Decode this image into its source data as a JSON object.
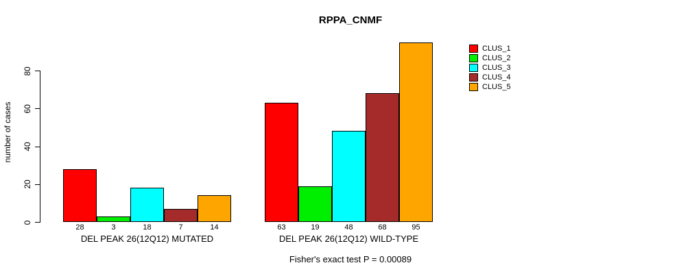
{
  "chart_data": {
    "type": "bar",
    "title": "RPPA_CNMF",
    "ylabel": "number of cases",
    "xlabel": "",
    "yticks": [
      0,
      20,
      40,
      60,
      80
    ],
    "ylim": [
      0,
      95
    ],
    "grid": false,
    "legend_position": "right-outside",
    "bar_value_labels_shown": true,
    "categories": [
      "DEL PEAK 26(12Q12) MUTATED",
      "DEL PEAK 26(12Q12) WILD-TYPE"
    ],
    "series": [
      {
        "name": "CLUS_1",
        "color": "#FF0000",
        "values": [
          28,
          63
        ]
      },
      {
        "name": "CLUS_2",
        "color": "#00EE00",
        "values": [
          3,
          19
        ]
      },
      {
        "name": "CLUS_3",
        "color": "#00FFFF",
        "values": [
          18,
          48
        ]
      },
      {
        "name": "CLUS_4",
        "color": "#A52A2A",
        "values": [
          7,
          68
        ]
      },
      {
        "name": "CLUS_5",
        "color": "#FFA500",
        "values": [
          14,
          95
        ]
      }
    ],
    "footnote": "Fisher's exact test P = 0.00089"
  }
}
